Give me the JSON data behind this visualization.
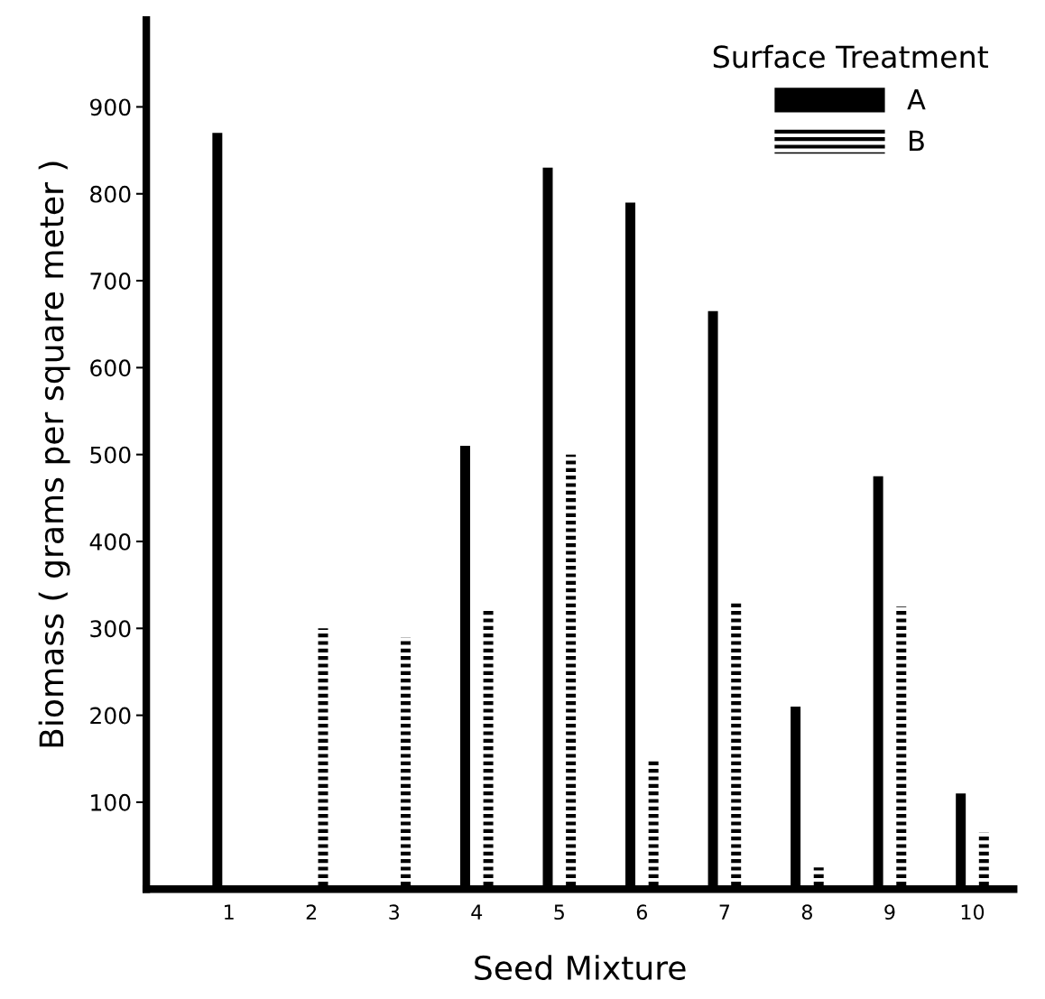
{
  "chart_data": {
    "type": "bar",
    "xlabel": "Seed Mixture",
    "ylabel": "Biomass ( grams per square meter )",
    "legend_title": "Surface Treatment",
    "categories": [
      "1",
      "2",
      "3",
      "4",
      "5",
      "6",
      "7",
      "8",
      "9",
      "10"
    ],
    "series": [
      {
        "name": "A",
        "color": "#000000",
        "values": [
          870,
          0,
          0,
          510,
          830,
          790,
          665,
          210,
          475,
          110
        ]
      },
      {
        "name": "B",
        "color": "#000000",
        "line_style": "dashed",
        "values": [
          0,
          300,
          290,
          320,
          500,
          150,
          330,
          25,
          325,
          65
        ]
      }
    ],
    "ylim": [
      0,
      1000
    ],
    "yticks": [
      100,
      200,
      300,
      400,
      500,
      600,
      700,
      800,
      900
    ],
    "grid": false,
    "legend": "top right"
  }
}
